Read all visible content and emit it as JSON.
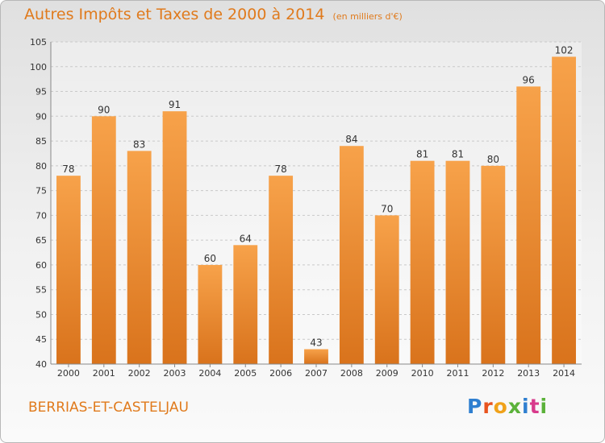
{
  "title": {
    "main": "Autres Impôts et Taxes de 2000 à 2014",
    "unit": "(en milliers d'€)"
  },
  "commune": "BERRIAS-ET-CASTELJAU",
  "brand": {
    "letters": [
      "P",
      "r",
      "o",
      "x",
      "i",
      "t",
      "i"
    ],
    "colors": [
      "#2f7fd0",
      "#e8531e",
      "#f0a21a",
      "#5bb23a",
      "#2f7fd0",
      "#d83a8c",
      "#5bb23a"
    ]
  },
  "chart_data": {
    "type": "bar",
    "title": "Autres Impôts et Taxes de 2000 à 2014",
    "subtitle": "(en milliers d'€)",
    "categories": [
      "2000",
      "2001",
      "2002",
      "2003",
      "2004",
      "2005",
      "2006",
      "2007",
      "2008",
      "2009",
      "2010",
      "2011",
      "2012",
      "2013",
      "2014"
    ],
    "values": [
      78,
      90,
      83,
      91,
      60,
      64,
      78,
      43,
      84,
      70,
      81,
      81,
      80,
      96,
      102
    ],
    "ylim": [
      40,
      105
    ],
    "yticks": [
      40,
      45,
      50,
      55,
      60,
      65,
      70,
      75,
      80,
      85,
      90,
      95,
      100,
      105
    ],
    "grid": true,
    "bar_color": "#f08a2a"
  }
}
